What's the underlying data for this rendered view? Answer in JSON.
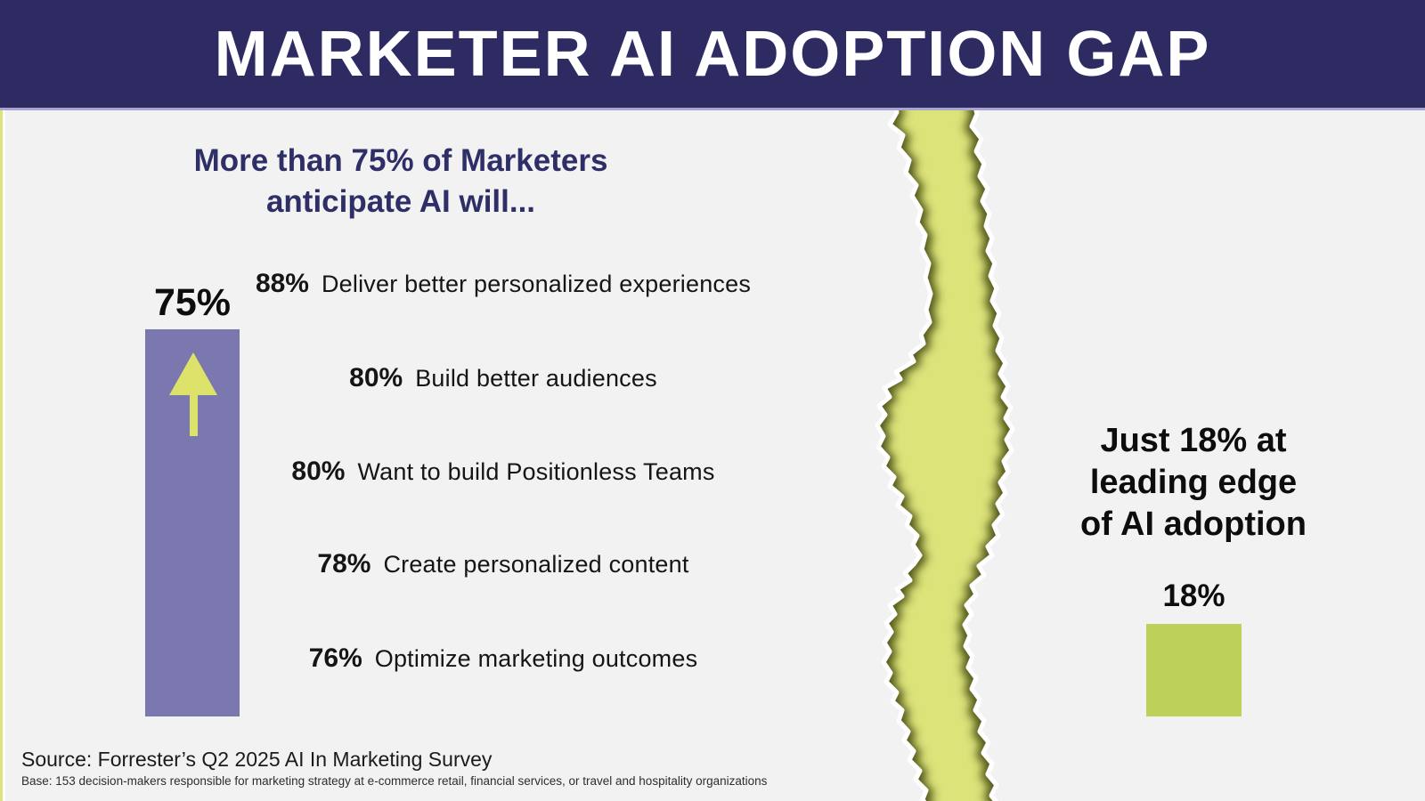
{
  "header": {
    "title": "MARKETER AI ADOPTION GAP"
  },
  "left": {
    "subtitle_line1": "More than 75% of Marketers",
    "subtitle_line2": "anticipate AI will...",
    "bar_label": "75%",
    "stats": [
      {
        "pct": "88%",
        "label": "Deliver better personalized experiences"
      },
      {
        "pct": "80%",
        "label": "Build better audiences"
      },
      {
        "pct": "80%",
        "label": "Want to build Positionless Teams"
      },
      {
        "pct": "78%",
        "label": "Create personalized content"
      },
      {
        "pct": "76%",
        "label": "Optimize marketing outcomes"
      }
    ]
  },
  "right": {
    "headline_line1": "Just 18% at",
    "headline_line2": "leading edge",
    "headline_line3": "of AI adoption",
    "bar_label": "18%"
  },
  "footer": {
    "source": "Source: Forrester’s Q2 2025 AI In Marketing Survey",
    "base": "Base: 153 decision-makers responsible for marketing strategy at e-commerce retail, financial services, or travel and hospitality organizations"
  },
  "colors": {
    "header_bg": "#2e2a62",
    "header_border": "#a8a5d0",
    "body_bg": "#f2f2f2",
    "navy_text": "#2f2f68",
    "black_text": "#0d0d0d",
    "purple_bar": "#7b78af",
    "arrow_green": "#dde26b",
    "torn_strip_green": "#dce379",
    "torn_shadow_olive": "#2f3404",
    "bar18_green": "#bcd05a"
  },
  "chart_data": {
    "type": "bar",
    "title": "MARKETER AI ADOPTION GAP",
    "categories": [
      "More than 75% of Marketers anticipate AI will...",
      "Just 18% at leading edge of AI adoption"
    ],
    "values": [
      75,
      18
    ],
    "unit": "%",
    "ylim": [
      0,
      100
    ],
    "bar_value_labels": [
      "75%",
      "18%"
    ],
    "annotations": [
      {
        "value": 88,
        "label": "Deliver better personalized experiences"
      },
      {
        "value": 80,
        "label": "Build better audiences"
      },
      {
        "value": 80,
        "label": "Want to build Positionless Teams"
      },
      {
        "value": 78,
        "label": "Create personalized content"
      },
      {
        "value": 76,
        "label": "Optimize marketing outcomes"
      }
    ],
    "source": "Forrester’s Q2 2025 AI In Marketing Survey"
  }
}
